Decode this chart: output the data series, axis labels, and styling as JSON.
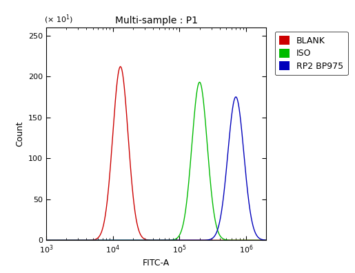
{
  "title": "Multi-sample : P1",
  "xlabel": "FITC-A",
  "ylabel": "Count",
  "xlim_log": [
    1000.0,
    2000000.0
  ],
  "ylim": [
    0,
    260
  ],
  "yticks": [
    0,
    50,
    100,
    150,
    200,
    250
  ],
  "series": [
    {
      "label": "BLANK",
      "color": "#cc0000",
      "peak_x": 13000,
      "peak_y": 212,
      "sigma_log": 0.115
    },
    {
      "label": "ISO",
      "color": "#00bb00",
      "peak_x": 200000,
      "peak_y": 193,
      "sigma_log": 0.115
    },
    {
      "label": "RP2 BP975",
      "color": "#0000bb",
      "peak_x": 700000,
      "peak_y": 175,
      "sigma_log": 0.12
    }
  ],
  "background_color": "#ffffff",
  "title_fontsize": 10,
  "label_fontsize": 9,
  "tick_fontsize": 8,
  "legend_fontsize": 9,
  "linewidth": 1.0
}
